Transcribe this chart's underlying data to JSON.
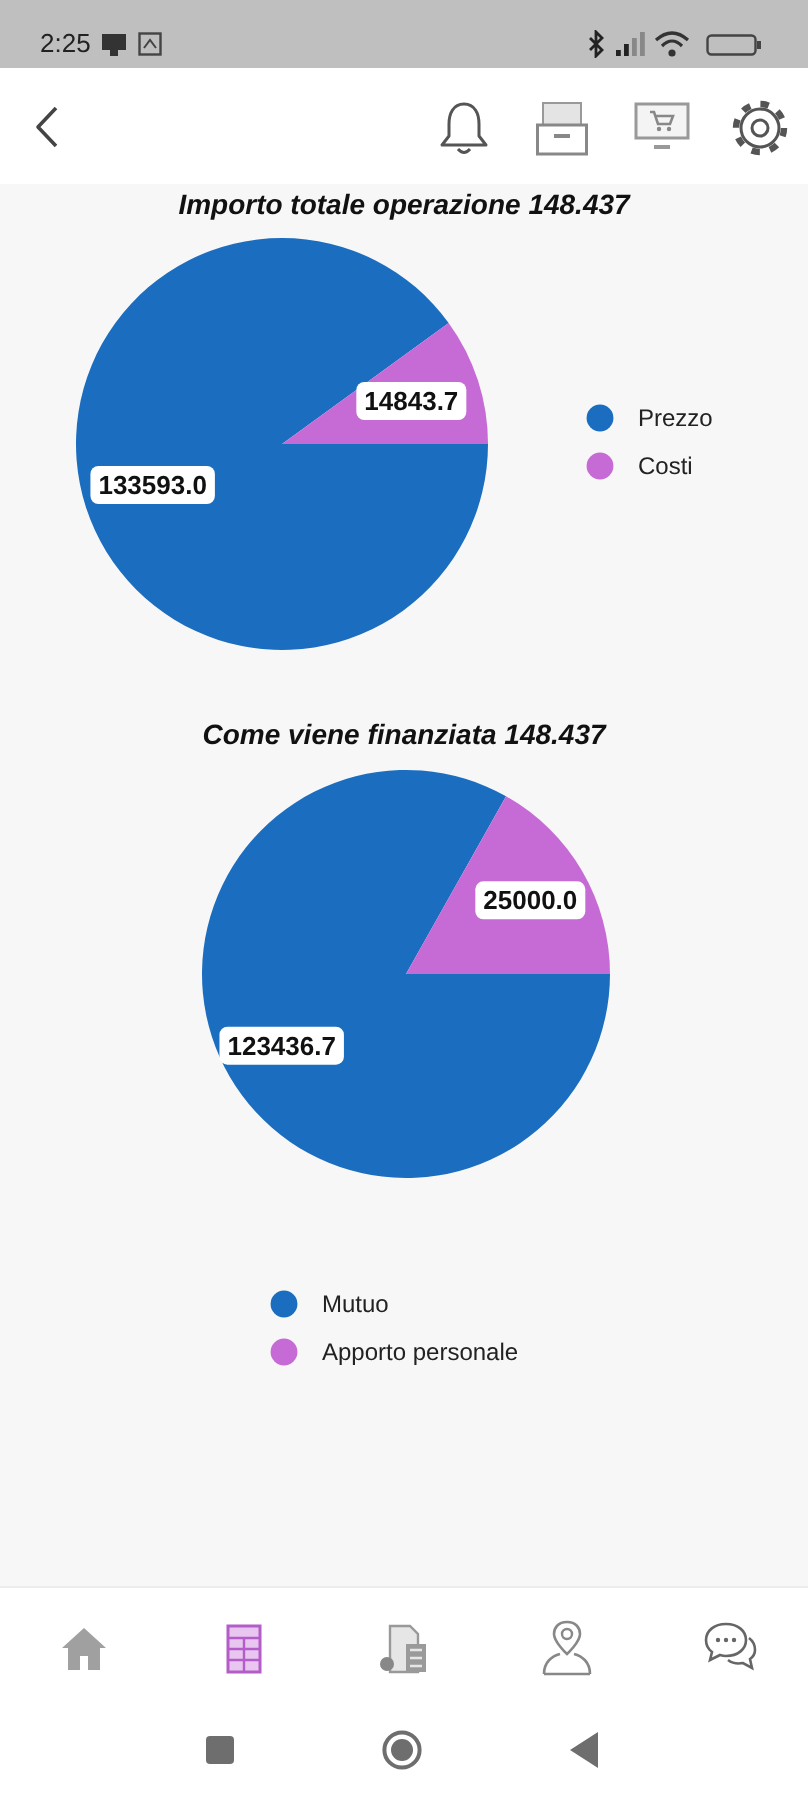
{
  "chart_data": [
    {
      "type": "pie",
      "title": "Importo totale operazione 148.437",
      "categories": [
        "Prezzo",
        "Costi"
      ],
      "values": [
        133593.0,
        14843.7
      ],
      "value_labels": [
        "133593.0",
        "14843.7"
      ],
      "colors": [
        "#1b6dbf",
        "#c66bd5"
      ],
      "legend": "right",
      "annotations": [
        "2:25"
      ]
    },
    {
      "type": "pie",
      "title": "Come viene finanziata 148.437",
      "categories": [
        "Mutuo",
        "Apporto personale"
      ],
      "values": [
        123436.7,
        25000.0
      ],
      "value_labels": [
        "123436.7",
        "25000.0"
      ],
      "colors": [
        "#1b6dbf",
        "#c66bd5"
      ],
      "legend": "bottom"
    }
  ]
}
